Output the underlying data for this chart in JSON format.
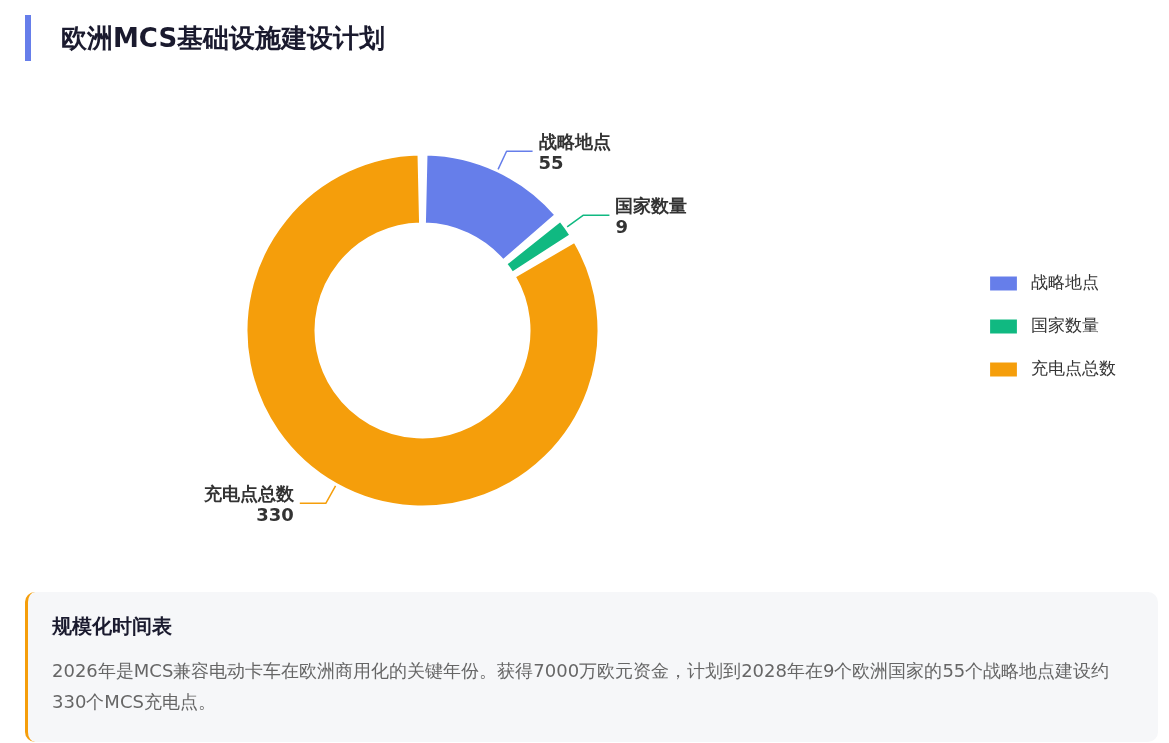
{
  "chart_data": {
    "type": "donut",
    "title": "欧洲MCS基础设施建设计划",
    "categories": [
      "战略地点",
      "国家数量",
      "充电点总数"
    ],
    "values": [
      55,
      9,
      330
    ],
    "colors": [
      "#667eea",
      "#10b981",
      "#f59e0b"
    ],
    "data_labels": true,
    "legend": "right",
    "annotations": [
      "规模化时间表",
      "2026年是MCS兼容电动卡车在欧洲商用化的关键年份。获得7000万欧元资金，计划到2028年在9个欧洲国家的55个战略地点建设约330个MCS充电点。"
    ]
  }
}
